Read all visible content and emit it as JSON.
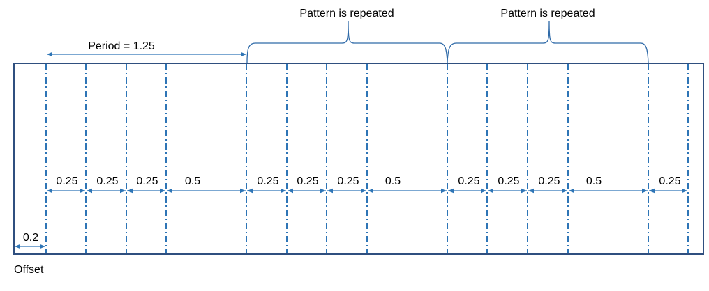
{
  "brace_labels": [
    "Pattern is repeated",
    "Pattern is repeated"
  ],
  "period_label": "Period =  1.25",
  "spacing_labels": [
    "0.25",
    "0.25",
    "0.25",
    "0.5",
    "0.25",
    "0.25",
    "0.25",
    "0.5",
    "0.25",
    "0.25",
    "0.25",
    "0.5",
    "0.25"
  ],
  "offset_value": "0.2",
  "offset_label": "Offset",
  "colors": {
    "frame": "#2f4f7f",
    "dashdot_line": "#2e75b6",
    "arrow": "#2e75b6",
    "brace": "#2f6aa8",
    "text": "#000000"
  }
}
